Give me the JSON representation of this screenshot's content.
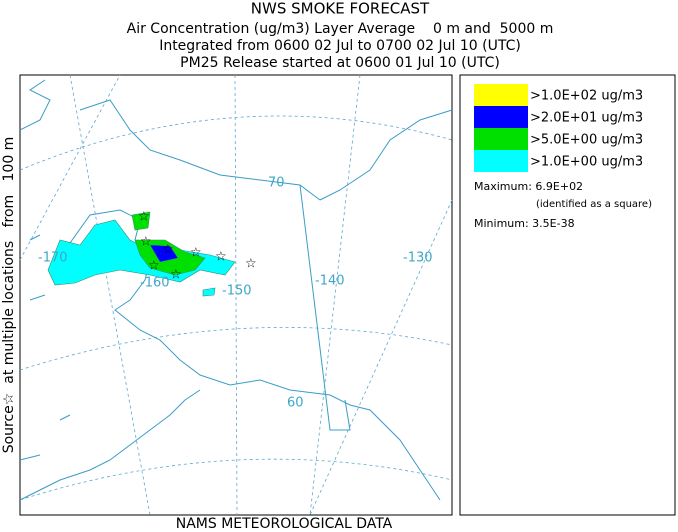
{
  "header": {
    "title": "NWS SMOKE FORECAST",
    "lines": [
      "Air Concentration (ug/m3) Layer Average    0 m and  5000 m",
      "Integrated from 0600 02 Jul to 0700 02 Jul 10 (UTC)",
      "PM25 Release started at 0600 01 Jul 10 (UTC)"
    ]
  },
  "side_label": "Source☆  at multiple locations   from   100 m",
  "footer": "NAMS METEOROLOGICAL DATA",
  "legend": {
    "items": [
      {
        "label": ">1.0E+02 ug/m3",
        "color": "#ffff00"
      },
      {
        "label": ">2.0E+01 ug/m3",
        "color": "#0000ff"
      },
      {
        "label": ">5.0E+00 ug/m3",
        "color": "#00e000"
      },
      {
        "label": ">1.0E+00 ug/m3",
        "color": "#00ffff"
      }
    ],
    "maximum": "Maximum: 6.9E+02",
    "maximum_note": "(identified as a square)",
    "minimum": "Minimum: 3.5E-38"
  },
  "map": {
    "labels": [
      "-170",
      "-160",
      "-150",
      "-140",
      "-130",
      "70",
      "60"
    ]
  }
}
